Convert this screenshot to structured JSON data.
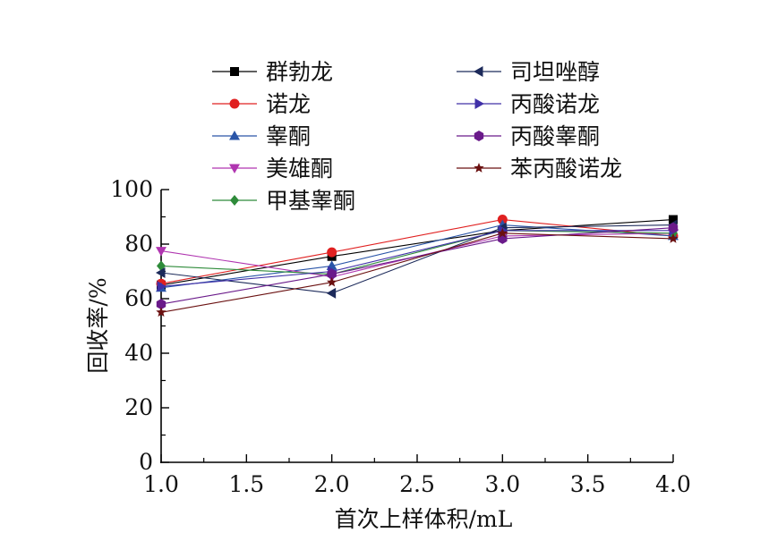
{
  "chart_data": {
    "type": "line",
    "title": "",
    "xlabel": "首次上样体积/mL",
    "ylabel": "回收率/%",
    "xlim": [
      1.0,
      4.0
    ],
    "ylim": [
      0,
      100
    ],
    "x_ticks": [
      "1.0",
      "1.5",
      "2.0",
      "2.5",
      "3.0",
      "3.5",
      "4.0"
    ],
    "y_ticks": [
      "0",
      "20",
      "40",
      "60",
      "80",
      "100"
    ],
    "grid": false,
    "legend_position": "top (two columns, inside plot area)",
    "x": [
      1.0,
      2.0,
      3.0,
      4.0
    ],
    "series": [
      {
        "name": "群勃龙",
        "values": [
          65,
          75.5,
          85,
          89
        ],
        "color": "#000000",
        "marker": "square"
      },
      {
        "name": "诺龙",
        "values": [
          65.5,
          77,
          89,
          83
        ],
        "color": "#e02020",
        "marker": "circle"
      },
      {
        "name": "睾酮",
        "values": [
          64,
          72,
          87,
          83
        ],
        "color": "#2a55a8",
        "marker": "triangle-up"
      },
      {
        "name": "美雄酮",
        "values": [
          77.5,
          68,
          83,
          84
        ],
        "color": "#b035b0",
        "marker": "triangle-down"
      },
      {
        "name": "甲基睾酮",
        "values": [
          72,
          69,
          85,
          84
        ],
        "color": "#2e8b3a",
        "marker": "diamond"
      },
      {
        "name": "司坦唑醇",
        "values": [
          69.5,
          62,
          86,
          87
        ],
        "color": "#1c2a5a",
        "marker": "triangle-left"
      },
      {
        "name": "丙酸诺龙",
        "values": [
          64.5,
          70,
          85,
          85
        ],
        "color": "#4030a8",
        "marker": "triangle-right"
      },
      {
        "name": "丙酸睾酮",
        "values": [
          58,
          69,
          82,
          86
        ],
        "color": "#6a1a8a",
        "marker": "hexagon"
      },
      {
        "name": "苯丙酸诺龙",
        "values": [
          55,
          66,
          84,
          82
        ],
        "color": "#6a1010",
        "marker": "star"
      }
    ]
  }
}
